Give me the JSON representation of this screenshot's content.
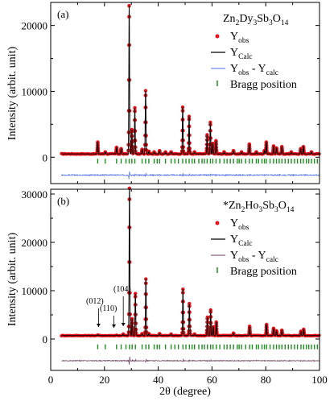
{
  "chart_data": [
    {
      "type": "line",
      "panel_label": "(a)",
      "compound_label": {
        "pre": "",
        "parts": [
          [
            "Zn",
            "2"
          ],
          [
            "Dy",
            "3"
          ],
          [
            "Sb",
            "3"
          ],
          [
            "O",
            "14"
          ]
        ]
      },
      "xlim": [
        0,
        100
      ],
      "ylim": [
        -4000,
        23500
      ],
      "yticks": [
        0,
        10000,
        20000
      ],
      "series": [
        {
          "name": "Y_obs",
          "label_main": "Y",
          "label_sub": "obs",
          "color": "#e8111a",
          "style": "points"
        },
        {
          "name": "Y_Calc",
          "label_main": "Y",
          "label_sub": "Calc",
          "color": "#000000",
          "style": "line"
        },
        {
          "name": "Y_obs - Y_calc",
          "label_main": "Y",
          "label_sub": "obs",
          "label_mid": " - Y",
          "label_sub2": "calc",
          "color": "#4e6fe6",
          "style": "difference"
        },
        {
          "name": "Bragg position",
          "label_main": "Bragg position",
          "color": "#1e8c1e",
          "style": "ticks"
        }
      ],
      "background": 500,
      "diff_offset": -2700,
      "peaks": [
        {
          "x": 17.5,
          "y": 1800
        },
        {
          "x": 20.3,
          "y": 300
        },
        {
          "x": 24.5,
          "y": 1000
        },
        {
          "x": 26.2,
          "y": 800
        },
        {
          "x": 29.2,
          "y": 22500
        },
        {
          "x": 30.2,
          "y": 3700
        },
        {
          "x": 31.3,
          "y": 7000
        },
        {
          "x": 34.0,
          "y": 700
        },
        {
          "x": 35.3,
          "y": 9600
        },
        {
          "x": 36.5,
          "y": 400
        },
        {
          "x": 38.5,
          "y": 300
        },
        {
          "x": 40.5,
          "y": 500
        },
        {
          "x": 42.7,
          "y": 300
        },
        {
          "x": 44.8,
          "y": 300
        },
        {
          "x": 49.1,
          "y": 7100
        },
        {
          "x": 51.5,
          "y": 5700
        },
        {
          "x": 53.5,
          "y": 300
        },
        {
          "x": 58.2,
          "y": 2900
        },
        {
          "x": 59.4,
          "y": 4800
        },
        {
          "x": 60.3,
          "y": 1600
        },
        {
          "x": 61.5,
          "y": 2000
        },
        {
          "x": 64.5,
          "y": 300
        },
        {
          "x": 68.0,
          "y": 500
        },
        {
          "x": 71.0,
          "y": 300
        },
        {
          "x": 73.9,
          "y": 1500
        },
        {
          "x": 76.5,
          "y": 300
        },
        {
          "x": 79.5,
          "y": 500
        },
        {
          "x": 80.2,
          "y": 1800
        },
        {
          "x": 82.9,
          "y": 1200
        },
        {
          "x": 84.0,
          "y": 900
        },
        {
          "x": 86.0,
          "y": 1100
        },
        {
          "x": 89.5,
          "y": 300
        },
        {
          "x": 93.0,
          "y": 800
        },
        {
          "x": 94.0,
          "y": 1100
        },
        {
          "x": 97.0,
          "y": 300
        }
      ],
      "bragg_positions": [
        17.5,
        20.3,
        24.5,
        26.2,
        28.0,
        29.2,
        30.2,
        31.3,
        34.0,
        35.3,
        36.5,
        38.5,
        39.6,
        40.5,
        42.7,
        44.8,
        46.2,
        47.5,
        49.1,
        50.3,
        51.5,
        52.6,
        53.5,
        55.1,
        56.3,
        57.2,
        58.2,
        59.4,
        60.3,
        61.5,
        62.9,
        64.5,
        65.6,
        66.8,
        68.0,
        69.4,
        70.1,
        71.0,
        72.5,
        73.9,
        75.0,
        76.5,
        77.3,
        78.6,
        79.5,
        80.2,
        81.6,
        82.9,
        84.0,
        85.0,
        86.0,
        87.2,
        88.4,
        89.5,
        90.7,
        91.8,
        93.0,
        94.0,
        95.1,
        96.0,
        97.0,
        98.1,
        99.2
      ]
    },
    {
      "type": "line",
      "panel_label": "(b)",
      "compound_label": {
        "pre": "*",
        "parts": [
          [
            "Zn",
            "2"
          ],
          [
            "Ho",
            "3"
          ],
          [
            "Sb",
            "3"
          ],
          [
            "O",
            "14"
          ]
        ]
      },
      "xlim": [
        0,
        100
      ],
      "ylim": [
        -6500,
        31000
      ],
      "yticks": [
        0,
        10000,
        20000,
        30000
      ],
      "xticks": [
        0,
        20,
        40,
        60,
        80,
        100
      ],
      "xlabel": "2θ (degree)",
      "series": [
        {
          "name": "Y_obs",
          "label_main": "Y",
          "label_sub": "obs",
          "color": "#e8111a",
          "style": "points"
        },
        {
          "name": "Y_Calc",
          "label_main": "Y",
          "label_sub": "Calc",
          "color": "#000000",
          "style": "line"
        },
        {
          "name": "Y_obs - Y_calc",
          "label_main": "Y",
          "label_sub": "obs",
          "label_mid": " - Y",
          "label_sub2": "calc",
          "color": "#6b3a5c",
          "style": "difference"
        },
        {
          "name": "Bragg position",
          "label_main": "Bragg position",
          "color": "#1e8c1e",
          "style": "ticks"
        }
      ],
      "background": 700,
      "diff_offset": -4500,
      "peaks": [
        {
          "x": 17.5,
          "y": 200
        },
        {
          "x": 24.5,
          "y": 150
        },
        {
          "x": 27.0,
          "y": 300
        },
        {
          "x": 29.3,
          "y": 30500
        },
        {
          "x": 30.3,
          "y": 3500
        },
        {
          "x": 31.5,
          "y": 8700
        },
        {
          "x": 34.0,
          "y": 400
        },
        {
          "x": 35.4,
          "y": 11700
        },
        {
          "x": 36.5,
          "y": 400
        },
        {
          "x": 40.5,
          "y": 400
        },
        {
          "x": 44.8,
          "y": 300
        },
        {
          "x": 49.2,
          "y": 9600
        },
        {
          "x": 51.6,
          "y": 6600
        },
        {
          "x": 53.5,
          "y": 300
        },
        {
          "x": 58.3,
          "y": 3800
        },
        {
          "x": 59.5,
          "y": 5300
        },
        {
          "x": 60.4,
          "y": 1800
        },
        {
          "x": 61.6,
          "y": 2800
        },
        {
          "x": 68.0,
          "y": 500
        },
        {
          "x": 74.0,
          "y": 1900
        },
        {
          "x": 80.3,
          "y": 2300
        },
        {
          "x": 82.9,
          "y": 1500
        },
        {
          "x": 84.0,
          "y": 1000
        },
        {
          "x": 86.0,
          "y": 1100
        },
        {
          "x": 93.1,
          "y": 900
        },
        {
          "x": 94.1,
          "y": 1300
        }
      ],
      "bragg_positions": [
        17.5,
        20.3,
        24.5,
        26.2,
        28.0,
        29.3,
        30.3,
        31.5,
        34.0,
        35.4,
        36.5,
        38.5,
        39.6,
        40.5,
        42.7,
        44.8,
        46.2,
        47.5,
        49.2,
        50.3,
        51.6,
        52.6,
        53.5,
        55.1,
        56.3,
        57.2,
        58.3,
        59.5,
        60.4,
        61.6,
        62.9,
        64.5,
        65.6,
        66.8,
        68.0,
        69.4,
        70.1,
        71.0,
        72.5,
        74.0,
        75.0,
        76.5,
        77.3,
        78.6,
        79.5,
        80.3,
        81.6,
        82.9,
        84.0,
        85.0,
        86.0,
        87.2,
        88.4,
        89.5,
        90.7,
        91.8,
        93.1,
        94.1,
        95.1,
        96.0,
        97.0,
        98.1,
        99.2
      ],
      "annotations": [
        {
          "label": "(012)",
          "x": 17.8
        },
        {
          "label": "(110)",
          "x": 23.5
        },
        {
          "label": "(104)",
          "x": 27.0
        }
      ]
    }
  ],
  "shared": {
    "ylabel": "Intensity (arbit. unit)",
    "xlabel": "2θ (degree)"
  }
}
